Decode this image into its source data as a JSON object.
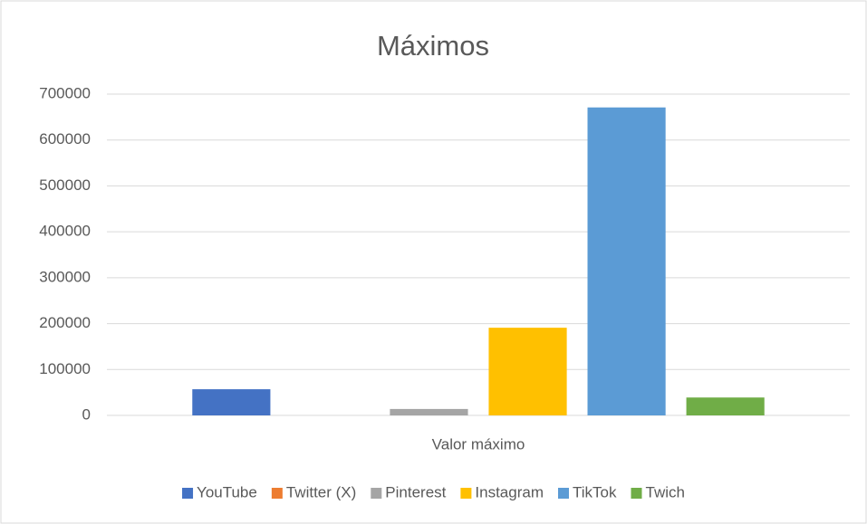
{
  "chart_data": {
    "type": "bar",
    "title": "Máximos",
    "categories": [
      "Valor máximo"
    ],
    "series": [
      {
        "name": "YouTube",
        "color": "#4472c4",
        "values": [
          57000
        ]
      },
      {
        "name": "Twitter (X)",
        "color": "#ed7d31",
        "values": [
          0
        ]
      },
      {
        "name": "Pinterest",
        "color": "#a5a5a5",
        "values": [
          14000
        ]
      },
      {
        "name": "Instagram",
        "color": "#ffc000",
        "values": [
          191000
        ]
      },
      {
        "name": "TikTok",
        "color": "#5b9bd5",
        "values": [
          671000
        ]
      },
      {
        "name": "Twich",
        "color": "#70ad47",
        "values": [
          39000
        ]
      }
    ],
    "ylim": [
      0,
      700000
    ],
    "yticks": [
      0,
      100000,
      200000,
      300000,
      400000,
      500000,
      600000,
      700000
    ],
    "grid": true,
    "legend": "bottom"
  }
}
